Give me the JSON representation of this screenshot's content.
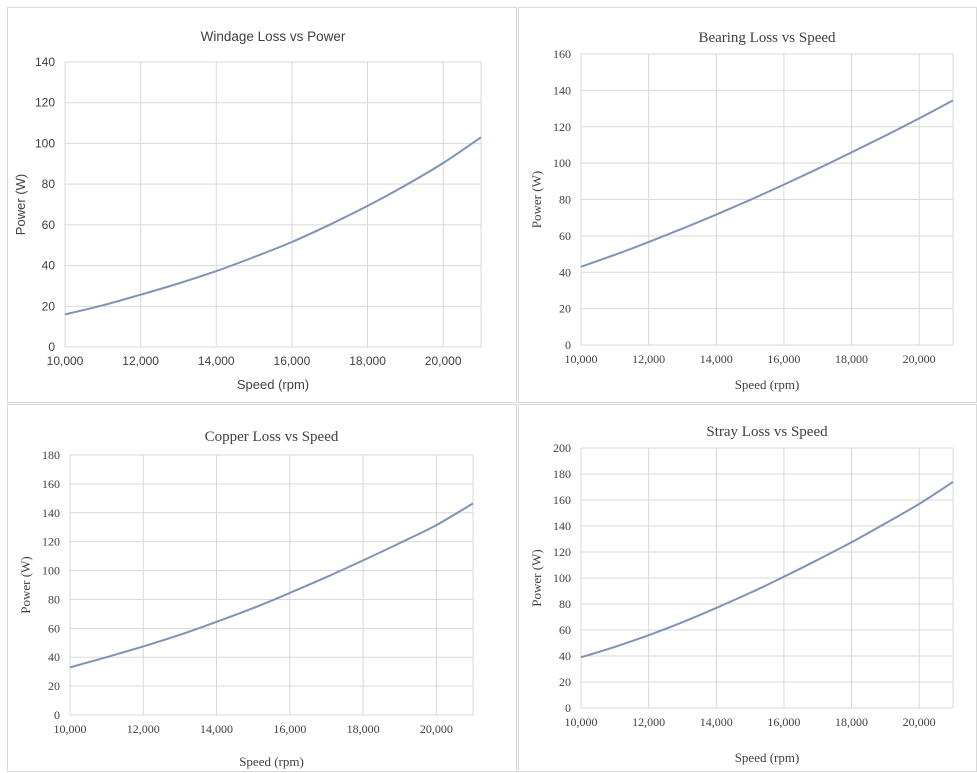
{
  "chart_data": [
    {
      "type": "line",
      "title": "Windage Loss vs Power",
      "xlabel": "Speed (rpm)",
      "ylabel": "Power (W)",
      "xlim": [
        10000,
        21000
      ],
      "ylim": [
        0,
        140
      ],
      "xticks": [
        "10,000",
        "12,000",
        "14,000",
        "16,000",
        "18,000",
        "20,000"
      ],
      "yticks": [
        "0",
        "20",
        "40",
        "60",
        "80",
        "100",
        "120",
        "140"
      ],
      "grid": true,
      "x": [
        10000,
        11000,
        12000,
        13000,
        14000,
        15000,
        16000,
        17000,
        18000,
        19000,
        20000,
        21000
      ],
      "y": [
        16,
        20.5,
        25.7,
        31.2,
        37.3,
        44.2,
        51.6,
        60.1,
        69.3,
        79.4,
        90.4,
        103
      ]
    },
    {
      "type": "line",
      "title": "Bearing Loss vs Speed",
      "xlabel": "Speed (rpm)",
      "ylabel": "Power (W)",
      "xlim": [
        10000,
        21000
      ],
      "ylim": [
        0,
        160
      ],
      "xticks": [
        "10,000",
        "12,000",
        "14,000",
        "16,000",
        "18,000",
        "20,000"
      ],
      "yticks": [
        "0",
        "20",
        "40",
        "60",
        "80",
        "100",
        "120",
        "140",
        "160"
      ],
      "grid": true,
      "x": [
        10000,
        11000,
        12000,
        13000,
        14000,
        15000,
        16000,
        17000,
        18000,
        19000,
        20000,
        21000
      ],
      "y": [
        43,
        49.6,
        56.6,
        64,
        71.7,
        79.8,
        88.2,
        96.9,
        105.9,
        115.1,
        124.6,
        134.5
      ]
    },
    {
      "type": "line",
      "title": "Copper Loss vs Speed",
      "xlabel": "Speed (rpm)",
      "ylabel": "Power (W)",
      "xlim": [
        10000,
        21000
      ],
      "ylim": [
        0,
        180
      ],
      "xticks": [
        "10,000",
        "12,000",
        "14,000",
        "16,000",
        "18,000",
        "20,000"
      ],
      "yticks": [
        "0",
        "20",
        "40",
        "60",
        "80",
        "100",
        "120",
        "140",
        "160",
        "180"
      ],
      "grid": true,
      "x": [
        10000,
        11000,
        12000,
        13000,
        14000,
        15000,
        16000,
        17000,
        18000,
        19000,
        20000,
        21000
      ],
      "y": [
        33,
        40,
        47.5,
        55.5,
        64.5,
        74,
        84.5,
        95.5,
        107,
        119,
        131.5,
        146.5
      ]
    },
    {
      "type": "line",
      "title": "Stray Loss vs Speed",
      "xlabel": "Speed (rpm)",
      "ylabel": "Power (W)",
      "xlim": [
        10000,
        21000
      ],
      "ylim": [
        0,
        200
      ],
      "xticks": [
        "10,000",
        "12,000",
        "14,000",
        "16,000",
        "18,000",
        "20,000"
      ],
      "yticks": [
        "0",
        "20",
        "40",
        "60",
        "80",
        "100",
        "120",
        "140",
        "160",
        "180",
        "200"
      ],
      "grid": true,
      "x": [
        10000,
        11000,
        12000,
        13000,
        14000,
        15000,
        16000,
        17000,
        18000,
        19000,
        20000,
        21000
      ],
      "y": [
        39,
        47,
        56,
        66,
        77,
        88.5,
        101,
        114,
        127.5,
        142,
        157,
        174
      ]
    }
  ],
  "colors": {
    "line": "#7f93b9",
    "grid": "#d9d9d9",
    "text": "#404040"
  }
}
